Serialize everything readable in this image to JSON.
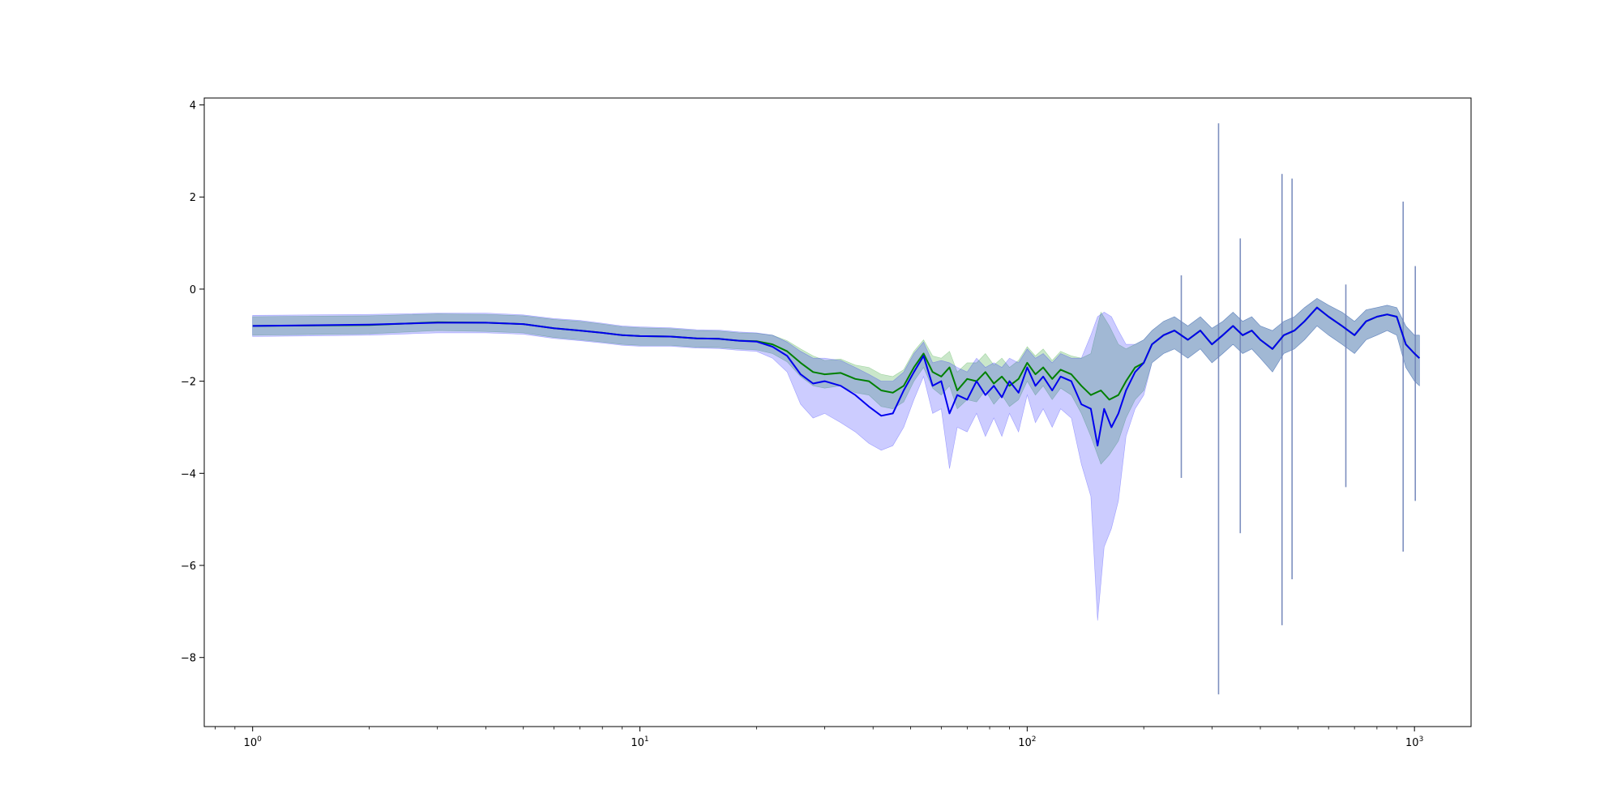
{
  "chart_data": {
    "type": "line",
    "title": "",
    "xlabel": "",
    "ylabel": "",
    "xscale": "log",
    "xlim": [
      0.75,
      1400
    ],
    "ylim": [
      -9.5,
      4.15
    ],
    "grid": false,
    "legend": "none",
    "x_ticks": [
      {
        "value": 1,
        "base": "10",
        "exp": "0"
      },
      {
        "value": 10,
        "base": "10",
        "exp": "1"
      },
      {
        "value": 100,
        "base": "10",
        "exp": "2"
      },
      {
        "value": 1000,
        "base": "10",
        "exp": "3"
      }
    ],
    "y_ticks": [
      {
        "value": 4,
        "label": "4"
      },
      {
        "value": 2,
        "label": "2"
      },
      {
        "value": 0,
        "label": "0"
      },
      {
        "value": -2,
        "label": "−2"
      },
      {
        "value": -4,
        "label": "−4"
      },
      {
        "value": -6,
        "label": "−6"
      },
      {
        "value": -8,
        "label": "−8"
      }
    ],
    "series": [
      {
        "color": "#008000",
        "band_color": "#2ca02c",
        "band_opacity": 0.25,
        "points": [
          [
            1,
            -0.8,
            -1.0,
            -0.6
          ],
          [
            2,
            -0.78,
            -0.97,
            -0.58
          ],
          [
            3,
            -0.72,
            -0.9,
            -0.54
          ],
          [
            4,
            -0.73,
            -0.92,
            -0.55
          ],
          [
            5,
            -0.76,
            -0.95,
            -0.58
          ],
          [
            6,
            -0.85,
            -1.05,
            -0.66
          ],
          [
            7,
            -0.9,
            -1.1,
            -0.7
          ],
          [
            8,
            -0.95,
            -1.15,
            -0.76
          ],
          [
            9,
            -1.0,
            -1.2,
            -0.82
          ],
          [
            10,
            -1.02,
            -1.22,
            -0.84
          ],
          [
            12,
            -1.03,
            -1.22,
            -0.86
          ],
          [
            14,
            -1.07,
            -1.26,
            -0.9
          ],
          [
            16,
            -1.08,
            -1.27,
            -0.91
          ],
          [
            18,
            -1.12,
            -1.3,
            -0.95
          ],
          [
            20,
            -1.13,
            -1.32,
            -0.96
          ],
          [
            22,
            -1.2,
            -1.4,
            -1.0
          ],
          [
            24,
            -1.35,
            -1.58,
            -1.12
          ],
          [
            26,
            -1.6,
            -1.9,
            -1.3
          ],
          [
            28,
            -1.8,
            -2.1,
            -1.45
          ],
          [
            30,
            -1.85,
            -2.15,
            -1.55
          ],
          [
            33,
            -1.82,
            -2.1,
            -1.52
          ],
          [
            36,
            -1.95,
            -2.25,
            -1.65
          ],
          [
            39,
            -2.0,
            -2.3,
            -1.7
          ],
          [
            42,
            -2.2,
            -2.55,
            -1.85
          ],
          [
            45,
            -2.25,
            -2.6,
            -1.9
          ],
          [
            48,
            -2.1,
            -2.45,
            -1.75
          ],
          [
            51,
            -1.7,
            -2.0,
            -1.35
          ],
          [
            54,
            -1.4,
            -1.7,
            -1.1
          ],
          [
            57,
            -1.8,
            -2.15,
            -1.45
          ],
          [
            60,
            -1.9,
            -2.3,
            -1.5
          ],
          [
            63,
            -1.7,
            -2.1,
            -1.35
          ],
          [
            66,
            -2.2,
            -2.6,
            -1.8
          ],
          [
            70,
            -1.95,
            -2.4,
            -1.6
          ],
          [
            74,
            -2.0,
            -2.45,
            -1.6
          ],
          [
            78,
            -1.8,
            -2.2,
            -1.4
          ],
          [
            82,
            -2.05,
            -2.5,
            -1.65
          ],
          [
            86,
            -1.9,
            -2.3,
            -1.5
          ],
          [
            90,
            -2.1,
            -2.55,
            -1.7
          ],
          [
            95,
            -1.95,
            -2.4,
            -1.55
          ],
          [
            100,
            -1.6,
            -2.0,
            -1.25
          ],
          [
            105,
            -1.85,
            -2.3,
            -1.45
          ],
          [
            110,
            -1.7,
            -2.1,
            -1.3
          ],
          [
            116,
            -1.95,
            -2.4,
            -1.55
          ],
          [
            122,
            -1.75,
            -2.15,
            -1.35
          ],
          [
            130,
            -1.85,
            -2.3,
            -1.45
          ],
          [
            138,
            -2.1,
            -2.7,
            -1.5
          ],
          [
            146,
            -2.3,
            -3.2,
            -1.4
          ],
          [
            155,
            -2.2,
            -3.8,
            -0.5
          ],
          [
            163,
            -2.4,
            -3.6,
            -0.8
          ],
          [
            172,
            -2.3,
            -3.3,
            -1.2
          ],
          [
            180,
            -2.0,
            -2.8,
            -1.3
          ],
          [
            190,
            -1.7,
            -2.4,
            -1.2
          ],
          [
            200,
            -1.6,
            -2.2,
            -1.1
          ],
          [
            210,
            -1.2,
            -1.6,
            -0.9
          ],
          [
            225,
            -1.0,
            -1.4,
            -0.7
          ],
          [
            240,
            -0.9,
            -1.3,
            -0.6
          ],
          [
            260,
            -1.1,
            -1.5,
            -0.8
          ],
          [
            280,
            -0.9,
            -1.3,
            -0.6
          ],
          [
            300,
            -1.2,
            -1.6,
            -0.85
          ],
          [
            320,
            -1.0,
            -1.4,
            -0.7
          ],
          [
            340,
            -0.8,
            -1.2,
            -0.5
          ],
          [
            360,
            -1.0,
            -1.4,
            -0.7
          ],
          [
            380,
            -0.9,
            -1.3,
            -0.6
          ],
          [
            400,
            -1.1,
            -1.5,
            -0.8
          ],
          [
            430,
            -1.3,
            -1.8,
            -0.9
          ],
          [
            460,
            -1.0,
            -1.4,
            -0.7
          ],
          [
            490,
            -0.9,
            -1.3,
            -0.6
          ],
          [
            520,
            -0.7,
            -1.1,
            -0.4
          ],
          [
            560,
            -0.4,
            -0.8,
            -0.2
          ],
          [
            600,
            -0.6,
            -1.0,
            -0.35
          ],
          [
            650,
            -0.8,
            -1.2,
            -0.5
          ],
          [
            700,
            -1.0,
            -1.4,
            -0.7
          ],
          [
            750,
            -0.7,
            -1.1,
            -0.45
          ],
          [
            800,
            -0.6,
            -1.0,
            -0.4
          ],
          [
            850,
            -0.55,
            -0.9,
            -0.35
          ],
          [
            900,
            -0.6,
            -1.0,
            -0.4
          ],
          [
            950,
            -1.2,
            -1.7,
            -0.8
          ],
          [
            1000,
            -1.4,
            -2.0,
            -1.0
          ],
          [
            1030,
            -1.5,
            -2.1,
            -1.0
          ]
        ]
      },
      {
        "color": "#0000ee",
        "band_color": "#0000ff",
        "band_opacity": 0.2,
        "points": [
          [
            1,
            -0.8,
            -1.03,
            -0.57
          ],
          [
            2,
            -0.77,
            -1.0,
            -0.55
          ],
          [
            3,
            -0.73,
            -0.95,
            -0.52
          ],
          [
            4,
            -0.73,
            -0.95,
            -0.52
          ],
          [
            5,
            -0.76,
            -0.98,
            -0.56
          ],
          [
            6,
            -0.85,
            -1.07,
            -0.64
          ],
          [
            7,
            -0.9,
            -1.12,
            -0.68
          ],
          [
            8,
            -0.95,
            -1.17,
            -0.74
          ],
          [
            9,
            -1.0,
            -1.22,
            -0.8
          ],
          [
            10,
            -1.02,
            -1.24,
            -0.82
          ],
          [
            12,
            -1.03,
            -1.24,
            -0.84
          ],
          [
            14,
            -1.07,
            -1.28,
            -0.88
          ],
          [
            16,
            -1.08,
            -1.29,
            -0.89
          ],
          [
            18,
            -1.12,
            -1.33,
            -0.93
          ],
          [
            20,
            -1.14,
            -1.35,
            -0.95
          ],
          [
            22,
            -1.25,
            -1.5,
            -1.0
          ],
          [
            24,
            -1.45,
            -1.8,
            -1.15
          ],
          [
            26,
            -1.85,
            -2.5,
            -1.35
          ],
          [
            28,
            -2.05,
            -2.8,
            -1.5
          ],
          [
            30,
            -2.0,
            -2.7,
            -1.5
          ],
          [
            33,
            -2.1,
            -2.9,
            -1.55
          ],
          [
            36,
            -2.3,
            -3.1,
            -1.7
          ],
          [
            39,
            -2.55,
            -3.35,
            -1.85
          ],
          [
            42,
            -2.75,
            -3.5,
            -2.0
          ],
          [
            45,
            -2.7,
            -3.4,
            -2.0
          ],
          [
            48,
            -2.2,
            -3.0,
            -1.8
          ],
          [
            51,
            -1.8,
            -2.4,
            -1.4
          ],
          [
            54,
            -1.45,
            -1.9,
            -1.15
          ],
          [
            57,
            -2.1,
            -2.7,
            -1.6
          ],
          [
            60,
            -2.0,
            -2.6,
            -1.55
          ],
          [
            63,
            -2.7,
            -3.9,
            -1.6
          ],
          [
            66,
            -2.3,
            -3.0,
            -1.7
          ],
          [
            70,
            -2.4,
            -3.1,
            -1.8
          ],
          [
            74,
            -2.0,
            -2.7,
            -1.5
          ],
          [
            78,
            -2.3,
            -3.2,
            -1.7
          ],
          [
            82,
            -2.1,
            -2.8,
            -1.6
          ],
          [
            86,
            -2.35,
            -3.2,
            -1.7
          ],
          [
            90,
            -2.0,
            -2.7,
            -1.5
          ],
          [
            95,
            -2.25,
            -3.1,
            -1.6
          ],
          [
            100,
            -1.7,
            -2.3,
            -1.3
          ],
          [
            105,
            -2.1,
            -2.9,
            -1.5
          ],
          [
            110,
            -1.9,
            -2.6,
            -1.4
          ],
          [
            116,
            -2.2,
            -3.0,
            -1.6
          ],
          [
            122,
            -1.9,
            -2.6,
            -1.4
          ],
          [
            130,
            -2.0,
            -2.8,
            -1.5
          ],
          [
            138,
            -2.5,
            -3.8,
            -1.5
          ],
          [
            146,
            -2.6,
            -4.5,
            -1.0
          ],
          [
            152,
            -3.4,
            -7.2,
            -0.6
          ],
          [
            158,
            -2.6,
            -5.6,
            -0.5
          ],
          [
            165,
            -3.0,
            -5.2,
            -0.6
          ],
          [
            172,
            -2.7,
            -4.6,
            -0.9
          ],
          [
            180,
            -2.2,
            -3.2,
            -1.2
          ],
          [
            190,
            -1.8,
            -2.6,
            -1.2
          ],
          [
            200,
            -1.6,
            -2.3,
            -1.1
          ],
          [
            210,
            -1.2,
            -1.6,
            -0.9
          ],
          [
            225,
            -1.0,
            -1.4,
            -0.7
          ],
          [
            240,
            -0.9,
            -1.3,
            -0.6
          ],
          [
            260,
            -1.1,
            -1.5,
            -0.8
          ],
          [
            280,
            -0.9,
            -1.3,
            -0.6
          ],
          [
            300,
            -1.2,
            -1.6,
            -0.85
          ],
          [
            320,
            -1.0,
            -1.4,
            -0.7
          ],
          [
            340,
            -0.8,
            -1.2,
            -0.5
          ],
          [
            360,
            -1.0,
            -1.4,
            -0.7
          ],
          [
            380,
            -0.9,
            -1.3,
            -0.6
          ],
          [
            400,
            -1.1,
            -1.5,
            -0.8
          ],
          [
            430,
            -1.3,
            -1.8,
            -0.9
          ],
          [
            460,
            -1.0,
            -1.4,
            -0.7
          ],
          [
            490,
            -0.9,
            -1.3,
            -0.6
          ],
          [
            520,
            -0.7,
            -1.1,
            -0.4
          ],
          [
            560,
            -0.4,
            -0.8,
            -0.2
          ],
          [
            600,
            -0.6,
            -1.0,
            -0.35
          ],
          [
            650,
            -0.8,
            -1.2,
            -0.5
          ],
          [
            700,
            -1.0,
            -1.4,
            -0.7
          ],
          [
            750,
            -0.7,
            -1.1,
            -0.45
          ],
          [
            800,
            -0.6,
            -1.0,
            -0.4
          ],
          [
            850,
            -0.55,
            -0.9,
            -0.35
          ],
          [
            900,
            -0.6,
            -1.0,
            -0.4
          ],
          [
            950,
            -1.2,
            -1.7,
            -0.8
          ],
          [
            1000,
            -1.4,
            -2.0,
            -1.0
          ],
          [
            1030,
            -1.5,
            -2.1,
            -1.0
          ]
        ]
      }
    ],
    "spikes": [
      {
        "x": 250,
        "lo": -4.1,
        "hi": 0.3
      },
      {
        "x": 312,
        "lo": -8.8,
        "hi": 3.6
      },
      {
        "x": 355,
        "lo": -5.3,
        "hi": 1.1
      },
      {
        "x": 455,
        "lo": -7.3,
        "hi": 2.5
      },
      {
        "x": 483,
        "lo": -6.3,
        "hi": 2.4
      },
      {
        "x": 665,
        "lo": -4.3,
        "hi": 0.1
      },
      {
        "x": 935,
        "lo": -5.7,
        "hi": 1.9
      },
      {
        "x": 1005,
        "lo": -4.6,
        "hi": 0.5
      }
    ]
  }
}
